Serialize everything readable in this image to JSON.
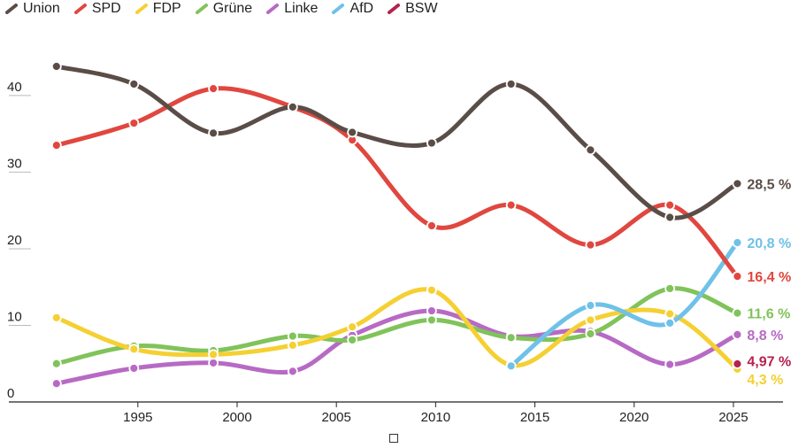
{
  "chart_data": {
    "type": "line",
    "title": "",
    "xlabel": "",
    "ylabel": "",
    "xlim": [
      1988.5,
      2027.5
    ],
    "ylim": [
      0,
      46
    ],
    "y_ticks": [
      0,
      10,
      20,
      30,
      40
    ],
    "x_ticks": [
      1995,
      2000,
      2005,
      2010,
      2015,
      2020,
      2025
    ],
    "grid": false,
    "legend_position": "top-left",
    "series": [
      {
        "name": "Union",
        "color": "#5a4d48",
        "end_label": "28,5 %",
        "points": [
          [
            1990.9,
            43.8
          ],
          [
            1994.8,
            41.5
          ],
          [
            1998.8,
            35.1
          ],
          [
            2002.8,
            38.5
          ],
          [
            2005.8,
            35.2
          ],
          [
            2009.8,
            33.8
          ],
          [
            2013.8,
            41.5
          ],
          [
            2017.8,
            32.9
          ],
          [
            2021.8,
            24.1
          ],
          [
            2025.2,
            28.5
          ]
        ]
      },
      {
        "name": "SPD",
        "color": "#e0473f",
        "end_label": "16,4 %",
        "points": [
          [
            1990.9,
            33.5
          ],
          [
            1994.8,
            36.4
          ],
          [
            1998.8,
            40.9
          ],
          [
            2002.8,
            38.5
          ],
          [
            2005.8,
            34.2
          ],
          [
            2009.8,
            23.0
          ],
          [
            2013.8,
            25.7
          ],
          [
            2017.8,
            20.5
          ],
          [
            2021.8,
            25.7
          ],
          [
            2025.2,
            16.4
          ]
        ]
      },
      {
        "name": "FDP",
        "color": "#f5d033",
        "end_label": "4,3 %",
        "points": [
          [
            1990.9,
            11.0
          ],
          [
            1994.8,
            6.9
          ],
          [
            1998.8,
            6.2
          ],
          [
            2002.8,
            7.4
          ],
          [
            2005.8,
            9.8
          ],
          [
            2009.8,
            14.6
          ],
          [
            2013.8,
            4.8
          ],
          [
            2017.8,
            10.7
          ],
          [
            2021.8,
            11.5
          ],
          [
            2025.2,
            4.3
          ]
        ]
      },
      {
        "name": "Grüne",
        "color": "#80c35a",
        "end_label": "11,6 %",
        "points": [
          [
            1990.9,
            5.0
          ],
          [
            1994.8,
            7.3
          ],
          [
            1998.8,
            6.7
          ],
          [
            2002.8,
            8.6
          ],
          [
            2005.8,
            8.1
          ],
          [
            2009.8,
            10.7
          ],
          [
            2013.8,
            8.4
          ],
          [
            2017.8,
            8.9
          ],
          [
            2021.8,
            14.8
          ],
          [
            2025.2,
            11.6
          ]
        ]
      },
      {
        "name": "Linke",
        "color": "#b76ac4",
        "end_label": "8,8 %",
        "points": [
          [
            1990.9,
            2.4
          ],
          [
            1994.8,
            4.4
          ],
          [
            1998.8,
            5.1
          ],
          [
            2002.8,
            4.0
          ],
          [
            2005.8,
            8.7
          ],
          [
            2009.8,
            11.9
          ],
          [
            2013.8,
            8.6
          ],
          [
            2017.8,
            9.2
          ],
          [
            2021.8,
            4.9
          ],
          [
            2025.2,
            8.8
          ]
        ]
      },
      {
        "name": "AfD",
        "color": "#6fc1e8",
        "end_label": "20,8 %",
        "points": [
          [
            2013.8,
            4.7
          ],
          [
            2017.8,
            12.6
          ],
          [
            2021.8,
            10.3
          ],
          [
            2025.2,
            20.8
          ]
        ]
      },
      {
        "name": "BSW",
        "color": "#b5224e",
        "end_label": "4,97 %",
        "points": [
          [
            2025.2,
            4.97
          ]
        ]
      }
    ]
  }
}
